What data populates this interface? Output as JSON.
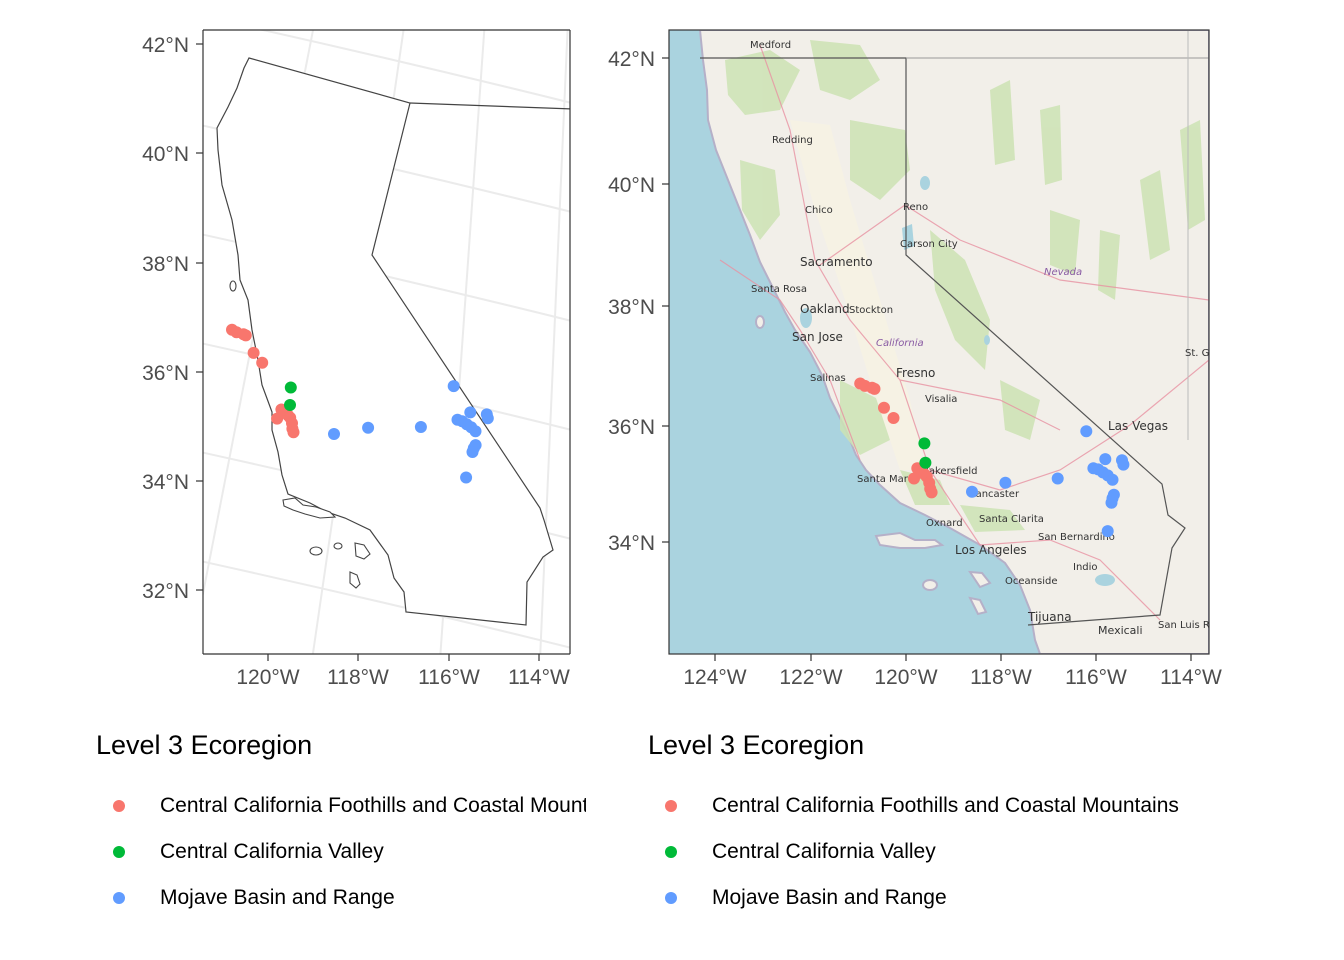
{
  "legend_left": {
    "title": "Level 3 Ecoregion",
    "items": [
      {
        "label": "Central California Foothills and Coastal Mountains",
        "color": "#F8766D"
      },
      {
        "label": "Central California Valley",
        "color": "#00BA38"
      },
      {
        "label": "Mojave Basin and Range",
        "color": "#619CFF"
      }
    ]
  },
  "legend_right": {
    "title": "Level 3 Ecoregion",
    "items": [
      {
        "label": "Central California Foothills and Coastal Mountains",
        "color": "#F8766D"
      },
      {
        "label": "Central California Valley",
        "color": "#00BA38"
      },
      {
        "label": "Mojave Basin and Range",
        "color": "#619CFF"
      }
    ]
  },
  "left_map": {
    "projection": "conic (tilted graticule)",
    "lat_ticks": [
      "42°N",
      "40°N",
      "38°N",
      "36°N",
      "34°N",
      "32°N"
    ],
    "lon_ticks": [
      "120°W",
      "118°W",
      "116°W",
      "114°W"
    ]
  },
  "right_map": {
    "basemap": "OpenStreetMap tiles",
    "lat_ticks": [
      "42°N",
      "40°N",
      "38°N",
      "36°N",
      "34°N"
    ],
    "lon_ticks": [
      "124°W",
      "122°W",
      "120°W",
      "118°W",
      "116°W",
      "114°W"
    ],
    "place_labels": [
      "Medford",
      "Redding",
      "Chico",
      "Reno",
      "Carson City",
      "Sacramento",
      "Santa Rosa",
      "Oakland",
      "Stockton",
      "San Jose",
      "California",
      "Nevada",
      "Salinas",
      "Fresno",
      "Visalia",
      "Las Vegas",
      "St. G",
      "Bakersfield",
      "Santa Mar",
      "Lancaster",
      "Oxnard",
      "Santa Clarita",
      "San Bernardino",
      "Los Angeles",
      "Indio",
      "Oceanside",
      "Tijuana",
      "Mexicali",
      "San Luis Rio Colora"
    ]
  },
  "map_data": {
    "points": [
      {
        "lon": -120.95,
        "lat": 36.62,
        "group": 0
      },
      {
        "lon": -120.85,
        "lat": 36.58,
        "group": 0
      },
      {
        "lon": -120.7,
        "lat": 36.55,
        "group": 0
      },
      {
        "lon": -120.65,
        "lat": 36.53,
        "group": 0
      },
      {
        "lon": -120.45,
        "lat": 36.22,
        "group": 0
      },
      {
        "lon": -120.25,
        "lat": 36.05,
        "group": 0
      },
      {
        "lon": -119.75,
        "lat": 35.22,
        "group": 0
      },
      {
        "lon": -119.7,
        "lat": 35.18,
        "group": 0
      },
      {
        "lon": -119.6,
        "lat": 35.12,
        "group": 0
      },
      {
        "lon": -119.55,
        "lat": 35.08,
        "group": 0
      },
      {
        "lon": -119.82,
        "lat": 35.05,
        "group": 0
      },
      {
        "lon": -119.5,
        "lat": 34.98,
        "group": 0
      },
      {
        "lon": -119.48,
        "lat": 34.88,
        "group": 0
      },
      {
        "lon": -119.45,
        "lat": 34.82,
        "group": 0
      },
      {
        "lon": -119.6,
        "lat": 35.63,
        "group": 1
      },
      {
        "lon": -119.58,
        "lat": 35.31,
        "group": 1
      },
      {
        "lon": -118.6,
        "lat": 34.83,
        "group": 2
      },
      {
        "lon": -117.9,
        "lat": 34.98,
        "group": 2
      },
      {
        "lon": -116.8,
        "lat": 35.05,
        "group": 2
      },
      {
        "lon": -116.2,
        "lat": 35.83,
        "group": 2
      },
      {
        "lon": -116.05,
        "lat": 35.22,
        "group": 2
      },
      {
        "lon": -115.95,
        "lat": 35.2,
        "group": 2
      },
      {
        "lon": -115.85,
        "lat": 35.15,
        "group": 2
      },
      {
        "lon": -115.8,
        "lat": 35.37,
        "group": 2
      },
      {
        "lon": -115.75,
        "lat": 35.1,
        "group": 2
      },
      {
        "lon": -115.65,
        "lat": 35.03,
        "group": 2
      },
      {
        "lon": -115.45,
        "lat": 35.35,
        "group": 2
      },
      {
        "lon": -115.42,
        "lat": 35.28,
        "group": 2
      },
      {
        "lon": -115.62,
        "lat": 34.78,
        "group": 2
      },
      {
        "lon": -115.65,
        "lat": 34.72,
        "group": 2
      },
      {
        "lon": -115.67,
        "lat": 34.65,
        "group": 2
      },
      {
        "lon": -115.75,
        "lat": 34.18,
        "group": 2
      }
    ]
  }
}
